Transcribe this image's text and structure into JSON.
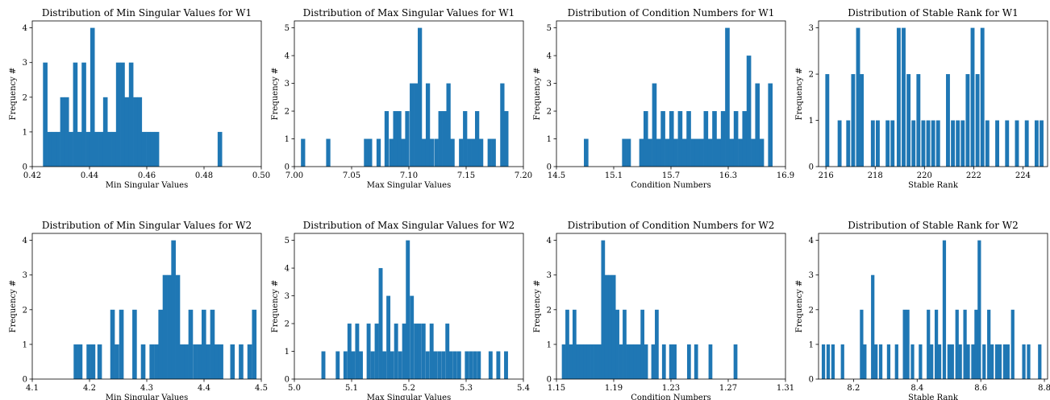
{
  "figure": {
    "accent_color": "#1f77b4"
  },
  "chart_data": [
    {
      "type": "bar",
      "title": "Distribution of Min Singular Values for W1",
      "xlabel": "Min Singular Values",
      "ylabel": "Frequency #",
      "xlim": [
        0.42,
        0.5
      ],
      "ylim": [
        0,
        4.2
      ],
      "xticks": [
        0.42,
        0.44,
        0.46,
        0.48,
        0.5
      ],
      "xtick_labels": [
        "0.42",
        "0.44",
        "0.46",
        "0.48",
        "0.50"
      ],
      "yticks": [
        0,
        1,
        2,
        3,
        4
      ],
      "ytick_labels": [
        "0",
        "1",
        "2",
        "3",
        "4"
      ],
      "x": [
        0.4245,
        0.426,
        0.4275,
        0.429,
        0.4305,
        0.432,
        0.4335,
        0.435,
        0.4365,
        0.438,
        0.4395,
        0.441,
        0.4425,
        0.444,
        0.4455,
        0.447,
        0.4485,
        0.45,
        0.4515,
        0.453,
        0.4545,
        0.456,
        0.4575,
        0.459,
        0.4605,
        0.462,
        0.4635,
        0.4855
      ],
      "values": [
        3,
        1,
        1,
        1,
        2,
        2,
        1,
        3,
        1,
        3,
        1,
        4,
        1,
        1,
        2,
        1,
        1,
        3,
        3,
        2,
        3,
        2,
        2,
        1,
        1,
        1,
        1,
        1
      ]
    },
    {
      "type": "bar",
      "title": "Distribution of Max Singular Values for W1",
      "xlabel": "Max Singular Values",
      "ylabel": "Frequency #",
      "xlim": [
        7.0,
        7.2
      ],
      "ylim": [
        0,
        5.25
      ],
      "xticks": [
        7.0,
        7.05,
        7.1,
        7.15,
        7.2
      ],
      "xtick_labels": [
        "7.00",
        "7.05",
        "7.10",
        "7.15",
        "7.20"
      ],
      "yticks": [
        0,
        1,
        2,
        3,
        4,
        5
      ],
      "ytick_labels": [
        "0",
        "1",
        "2",
        "3",
        "4",
        "5"
      ],
      "x": [
        7.0075,
        7.0295,
        7.0625,
        7.066,
        7.0735,
        7.0805,
        7.0845,
        7.088,
        7.0915,
        7.095,
        7.0985,
        7.1025,
        7.106,
        7.1095,
        7.113,
        7.1165,
        7.12,
        7.124,
        7.1275,
        7.131,
        7.1345,
        7.138,
        7.1455,
        7.149,
        7.1525,
        7.156,
        7.1595,
        7.163,
        7.1705,
        7.174,
        7.1815,
        7.185
      ],
      "values": [
        1,
        1,
        1,
        1,
        1,
        2,
        1,
        2,
        2,
        1,
        2,
        3,
        3,
        5,
        1,
        3,
        1,
        1,
        2,
        2,
        3,
        1,
        1,
        2,
        1,
        1,
        2,
        1,
        1,
        1,
        3,
        2
      ]
    },
    {
      "type": "bar",
      "title": "Distribution of Condition Numbers for W1",
      "xlabel": "Condition Numbers",
      "ylabel": "Frequency #",
      "xlim": [
        14.5,
        16.9
      ],
      "ylim": [
        0,
        5.25
      ],
      "xticks": [
        14.5,
        15.1,
        15.7,
        16.3,
        16.9
      ],
      "xtick_labels": [
        "14.5",
        "15.1",
        "15.7",
        "16.3",
        "16.9"
      ],
      "yticks": [
        0,
        1,
        2,
        3,
        4,
        5
      ],
      "ytick_labels": [
        "0",
        "1",
        "2",
        "3",
        "4",
        "5"
      ],
      "x": [
        14.81,
        15.21,
        15.255,
        15.39,
        15.435,
        15.48,
        15.525,
        15.57,
        15.615,
        15.66,
        15.705,
        15.75,
        15.795,
        15.84,
        15.885,
        15.93,
        15.975,
        16.02,
        16.065,
        16.11,
        16.155,
        16.2,
        16.245,
        16.29,
        16.335,
        16.38,
        16.425,
        16.47,
        16.515,
        16.56,
        16.605,
        16.65,
        16.74
      ],
      "values": [
        1,
        1,
        1,
        1,
        2,
        1,
        3,
        1,
        2,
        1,
        2,
        1,
        2,
        1,
        2,
        1,
        1,
        1,
        2,
        1,
        2,
        1,
        2,
        5,
        1,
        2,
        1,
        2,
        4,
        1,
        3,
        1,
        3
      ]
    },
    {
      "type": "bar",
      "title": "Distribution of Stable Rank for W1",
      "xlabel": "Stable Rank",
      "ylabel": "Frequency #",
      "xlim": [
        215.7,
        225.0
      ],
      "ylim": [
        0,
        3.15
      ],
      "xticks": [
        216,
        218,
        220,
        222,
        224
      ],
      "xtick_labels": [
        "216",
        "218",
        "220",
        "222",
        "224"
      ],
      "yticks": [
        0,
        1,
        2,
        3
      ],
      "ytick_labels": [
        "0",
        "1",
        "2",
        "3"
      ],
      "x": [
        216.05,
        216.55,
        216.9,
        217.1,
        217.3,
        217.45,
        217.9,
        218.1,
        218.5,
        218.7,
        218.95,
        219.15,
        219.35,
        219.55,
        219.75,
        219.95,
        220.15,
        220.35,
        220.55,
        220.95,
        221.15,
        221.35,
        221.55,
        221.75,
        221.95,
        222.15,
        222.35,
        222.55,
        222.95,
        223.35,
        223.75,
        224.15,
        224.55,
        224.75
      ],
      "values": [
        2,
        1,
        1,
        2,
        3,
        2,
        1,
        1,
        1,
        1,
        3,
        3,
        2,
        1,
        2,
        1,
        1,
        1,
        1,
        2,
        1,
        1,
        1,
        2,
        3,
        2,
        3,
        1,
        1,
        1,
        1,
        1,
        1,
        1
      ]
    },
    {
      "type": "bar",
      "title": "Distribution of Min Singular Values for W2",
      "xlabel": "Min Singular Values",
      "ylabel": "Frequency #",
      "xlim": [
        4.1,
        4.5
      ],
      "ylim": [
        0,
        4.2
      ],
      "xticks": [
        4.1,
        4.2,
        4.3,
        4.4,
        4.5
      ],
      "xtick_labels": [
        "4.1",
        "4.2",
        "4.3",
        "4.4",
        "4.5"
      ],
      "yticks": [
        0,
        1,
        2,
        3,
        4
      ],
      "ytick_labels": [
        "0",
        "1",
        "2",
        "3",
        "4"
      ],
      "x": [
        4.176,
        4.1835,
        4.1985,
        4.206,
        4.2175,
        4.24,
        4.2475,
        4.2555,
        4.2785,
        4.2935,
        4.3085,
        4.3165,
        4.324,
        4.3315,
        4.339,
        4.3465,
        4.354,
        4.3615,
        4.369,
        4.3765,
        4.3845,
        4.392,
        4.3995,
        4.407,
        4.4145,
        4.422,
        4.4295,
        4.4495,
        4.4645,
        4.4795,
        4.4875
      ],
      "values": [
        1,
        1,
        1,
        1,
        1,
        2,
        1,
        2,
        2,
        1,
        1,
        1,
        2,
        3,
        3,
        4,
        3,
        1,
        1,
        2,
        1,
        1,
        2,
        1,
        2,
        1,
        1,
        1,
        1,
        1,
        2
      ]
    },
    {
      "type": "bar",
      "title": "Distribution of Max Singular Values for W2",
      "xlabel": "Max Singular Values",
      "ylabel": "Frequency #",
      "xlim": [
        5.0,
        5.4
      ],
      "ylim": [
        0,
        5.25
      ],
      "xticks": [
        5.0,
        5.1,
        5.2,
        5.3,
        5.4
      ],
      "xtick_labels": [
        "5.0",
        "5.1",
        "5.2",
        "5.3",
        "5.4"
      ],
      "yticks": [
        0,
        1,
        2,
        3,
        4,
        5
      ],
      "ytick_labels": [
        "0",
        "1",
        "2",
        "3",
        "4",
        "5"
      ],
      "x": [
        5.0505,
        5.0755,
        5.089,
        5.096,
        5.1025,
        5.1095,
        5.116,
        5.1295,
        5.1365,
        5.1435,
        5.1505,
        5.157,
        5.164,
        5.1705,
        5.1775,
        5.1845,
        5.1915,
        5.198,
        5.205,
        5.212,
        5.2185,
        5.2255,
        5.2325,
        5.2395,
        5.246,
        5.253,
        5.26,
        5.267,
        5.2735,
        5.2805,
        5.2875,
        5.301,
        5.308,
        5.315,
        5.322,
        5.3425,
        5.356,
        5.3695
      ],
      "values": [
        1,
        1,
        1,
        2,
        1,
        2,
        1,
        2,
        1,
        2,
        4,
        1,
        3,
        1,
        2,
        1,
        2,
        5,
        3,
        2,
        2,
        2,
        1,
        2,
        1,
        1,
        1,
        2,
        1,
        1,
        1,
        1,
        1,
        1,
        1,
        1,
        1,
        1
      ]
    },
    {
      "type": "bar",
      "title": "Distribution of Condition Numbers for W2",
      "xlabel": "Condition Numbers",
      "ylabel": "Frequency #",
      "xlim": [
        1.15,
        1.31
      ],
      "ylim": [
        0,
        4.2
      ],
      "xticks": [
        1.15,
        1.19,
        1.23,
        1.27,
        1.31
      ],
      "xtick_labels": [
        "1.15",
        "1.19",
        "1.23",
        "1.27",
        "1.31"
      ],
      "yticks": [
        0,
        1,
        2,
        3,
        4
      ],
      "ytick_labels": [
        "0",
        "1",
        "2",
        "3",
        "4"
      ],
      "x": [
        1.155,
        1.1575,
        1.16,
        1.1625,
        1.165,
        1.1675,
        1.17,
        1.1725,
        1.175,
        1.1775,
        1.18,
        1.1825,
        1.185,
        1.1875,
        1.19,
        1.1925,
        1.195,
        1.1975,
        1.2,
        1.2025,
        1.205,
        1.2075,
        1.21,
        1.2125,
        1.2175,
        1.22,
        1.225,
        1.23,
        1.2325,
        1.2425,
        1.2475,
        1.2575,
        1.275
      ],
      "values": [
        1,
        2,
        1,
        2,
        1,
        1,
        1,
        1,
        1,
        1,
        1,
        4,
        3,
        3,
        3,
        2,
        1,
        2,
        1,
        1,
        1,
        1,
        2,
        1,
        1,
        2,
        1,
        1,
        1,
        1,
        1,
        1,
        1
      ]
    },
    {
      "type": "bar",
      "title": "Distribution of Stable Rank for W2",
      "xlabel": "Stable Rank",
      "ylabel": "Frequency #",
      "xlim": [
        8.09,
        8.81
      ],
      "ylim": [
        0,
        4.2
      ],
      "xticks": [
        8.2,
        8.4,
        8.6,
        8.8
      ],
      "xtick_labels": [
        "8.2",
        "8.4",
        "8.6",
        "8.8"
      ],
      "yticks": [
        0,
        1,
        2,
        3,
        4
      ],
      "ytick_labels": [
        "0",
        "1",
        "2",
        "3",
        "4"
      ],
      "x": [
        8.105,
        8.12,
        8.135,
        8.165,
        8.225,
        8.235,
        8.26,
        8.27,
        8.285,
        8.31,
        8.335,
        8.36,
        8.37,
        8.385,
        8.41,
        8.435,
        8.445,
        8.46,
        8.47,
        8.485,
        8.5,
        8.51,
        8.525,
        8.535,
        8.55,
        8.56,
        8.575,
        8.585,
        8.595,
        8.61,
        8.625,
        8.635,
        8.65,
        8.66,
        8.675,
        8.685,
        8.7,
        8.735,
        8.75,
        8.785
      ],
      "values": [
        1,
        1,
        1,
        1,
        2,
        1,
        3,
        1,
        1,
        1,
        1,
        2,
        2,
        1,
        1,
        2,
        1,
        2,
        1,
        4,
        1,
        1,
        2,
        1,
        2,
        1,
        1,
        2,
        4,
        1,
        2,
        1,
        1,
        1,
        1,
        1,
        2,
        1,
        1,
        1
      ]
    }
  ]
}
